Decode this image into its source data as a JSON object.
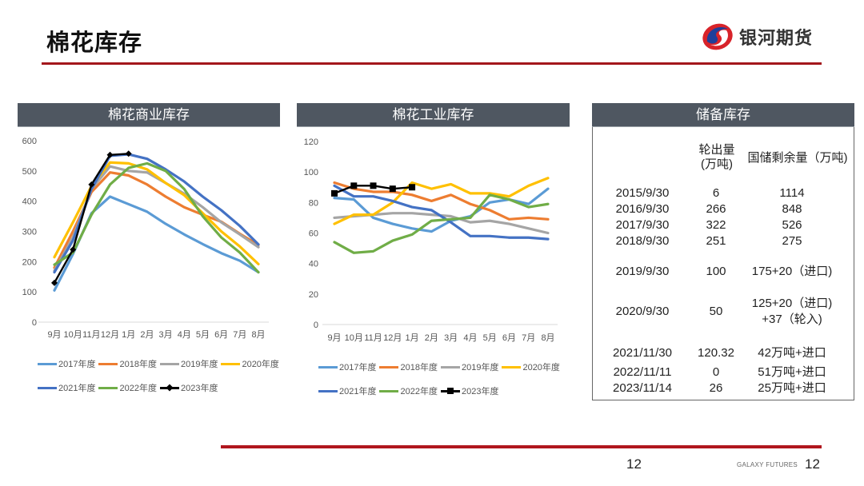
{
  "header": {
    "title": "棉花库存",
    "logo_text": "银河期货",
    "colors": {
      "rule": "#a3161c",
      "logo_red": "#d8232a",
      "logo_blue": "#1f3f9a"
    }
  },
  "series_colors": {
    "2017年度": "#5b9bd5",
    "2018年度": "#ed7d31",
    "2019年度": "#a5a5a5",
    "2020年度": "#ffc000",
    "2021年度": "#4472c4",
    "2022年度": "#70ad47",
    "2023年度": "#000000"
  },
  "chart_data": [
    {
      "type": "line",
      "title": "棉花商业库存",
      "xlabel": "",
      "ylabel": "",
      "categories": [
        "9月",
        "10月",
        "11月",
        "12月",
        "1月",
        "2月",
        "3月",
        "4月",
        "5月",
        "6月",
        "7月",
        "8月"
      ],
      "ylim": [
        0,
        600
      ],
      "yticks": [
        0,
        100,
        200,
        300,
        400,
        500,
        600
      ],
      "grid": false,
      "legend_position": "bottom",
      "series": [
        {
          "name": "2017年度",
          "values": [
            105,
            225,
            360,
            415,
            390,
            365,
            325,
            290,
            258,
            228,
            203,
            165
          ]
        },
        {
          "name": "2018年度",
          "values": [
            180,
            300,
            430,
            495,
            485,
            455,
            415,
            380,
            355,
            332,
            292,
            255
          ]
        },
        {
          "name": "2019年度",
          "values": [
            170,
            280,
            440,
            515,
            500,
            495,
            460,
            425,
            380,
            330,
            290,
            248
          ]
        },
        {
          "name": "2020年度",
          "values": [
            215,
            330,
            450,
            528,
            525,
            505,
            460,
            420,
            360,
            300,
            250,
            192
          ]
        },
        {
          "name": "2021年度",
          "values": [
            165,
            270,
            440,
            550,
            555,
            540,
            505,
            465,
            415,
            370,
            318,
            257
          ]
        },
        {
          "name": "2022年度",
          "values": [
            190,
            230,
            355,
            455,
            510,
            525,
            500,
            440,
            350,
            280,
            230,
            165
          ]
        },
        {
          "name": "2023年度",
          "values": [
            130,
            240,
            455,
            553,
            557,
            null,
            null,
            null,
            null,
            null,
            null,
            null
          ]
        }
      ]
    },
    {
      "type": "line",
      "title": "棉花工业库存",
      "xlabel": "",
      "ylabel": "",
      "categories": [
        "9月",
        "10月",
        "11月",
        "12月",
        "1月",
        "2月",
        "3月",
        "4月",
        "5月",
        "6月",
        "7月",
        "8月"
      ],
      "ylim": [
        0,
        120
      ],
      "yticks": [
        0,
        20,
        40,
        60,
        80,
        100,
        120
      ],
      "grid": false,
      "legend_position": "bottom",
      "series": [
        {
          "name": "2017年度",
          "values": [
            83,
            82,
            70,
            66,
            63,
            61,
            68,
            71,
            80,
            82,
            79,
            89
          ]
        },
        {
          "name": "2018年度",
          "values": [
            93,
            89,
            87,
            87,
            85,
            81,
            85,
            79,
            75,
            69,
            70,
            69
          ]
        },
        {
          "name": "2019年度",
          "values": [
            70,
            71,
            72,
            73,
            73,
            72,
            71,
            67,
            68,
            66,
            63,
            60
          ]
        },
        {
          "name": "2020年度",
          "values": [
            66,
            72,
            72,
            80,
            93,
            89,
            92,
            86,
            86,
            84,
            91,
            96
          ]
        },
        {
          "name": "2021年度",
          "values": [
            91,
            84,
            84,
            81,
            77,
            75,
            67,
            58,
            58,
            57,
            57,
            56
          ]
        },
        {
          "name": "2022年度",
          "values": [
            54,
            47,
            48,
            55,
            59,
            68,
            69,
            70,
            85,
            82,
            77,
            79
          ]
        },
        {
          "name": "2023年度",
          "values": [
            86,
            91,
            91,
            89,
            90,
            null,
            null,
            null,
            null,
            null,
            null,
            null
          ]
        }
      ]
    },
    {
      "type": "table",
      "title": "储备库存",
      "columns": [
        "",
        "轮出量\n(万吨)",
        "国储剩余量（万吨)"
      ],
      "header": {
        "col1_line1": "轮出量",
        "col1_line2": "(万吨)",
        "col2": "国储剩余量（万吨)"
      },
      "rows": [
        {
          "date": "2015/9/30",
          "out": "6",
          "remain": "1114",
          "remain2": ""
        },
        {
          "date": "2016/9/30",
          "out": "266",
          "remain": "848",
          "remain2": ""
        },
        {
          "date": "2017/9/30",
          "out": "322",
          "remain": "526",
          "remain2": ""
        },
        {
          "date": "2018/9/30",
          "out": "251",
          "remain": "275",
          "remain2": ""
        },
        {
          "date": "2019/9/30",
          "out": "100",
          "remain": "175+20（进口)",
          "remain2": ""
        },
        {
          "date": "2020/9/30",
          "out": "50",
          "remain": "125+20（进口)",
          "remain2": "+37（轮入)"
        },
        {
          "date": "2021/11/30",
          "out": "120.32",
          "remain": "42万吨+进口",
          "remain2": ""
        },
        {
          "date": "2022/11/11",
          "out": "0",
          "remain": "51万吨+进口",
          "remain2": ""
        },
        {
          "date": "2023/11/14",
          "out": "26",
          "remain": "25万吨+进口",
          "remain2": ""
        }
      ]
    }
  ],
  "footer": {
    "page_number": "12",
    "brand": "GALAXY FUTURES",
    "brand_page_number": "12"
  }
}
